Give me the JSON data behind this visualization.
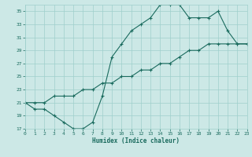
{
  "xlabel": "Humidex (Indice chaleur)",
  "ylabel": "",
  "bg_color": "#cce8e6",
  "grid_color": "#9fcfcc",
  "line_color": "#1a6b5e",
  "x_min": 0,
  "x_max": 23,
  "y_min": 17,
  "y_max": 36,
  "y_ticks": [
    17,
    19,
    21,
    23,
    25,
    27,
    29,
    31,
    33,
    35
  ],
  "x_ticks": [
    0,
    1,
    2,
    3,
    4,
    5,
    6,
    7,
    8,
    9,
    10,
    11,
    12,
    13,
    14,
    15,
    16,
    17,
    18,
    19,
    20,
    21,
    22,
    23
  ],
  "line1_x": [
    0,
    1,
    2,
    3,
    4,
    5,
    6,
    7,
    8,
    9,
    10,
    11,
    12,
    13,
    14,
    15,
    16,
    17,
    18,
    19,
    20,
    21,
    22,
    23
  ],
  "line1_y": [
    21,
    20,
    20,
    19,
    18,
    17,
    17,
    18,
    22,
    28,
    30,
    32,
    33,
    34,
    36,
    36,
    36,
    34,
    34,
    34,
    35,
    32,
    30,
    30
  ],
  "line2_x": [
    0,
    1,
    2,
    3,
    4,
    5,
    6,
    7,
    8,
    9,
    10,
    11,
    12,
    13,
    14,
    15,
    16,
    17,
    18,
    19,
    20,
    21,
    22,
    23
  ],
  "line2_y": [
    21,
    21,
    21,
    22,
    22,
    22,
    23,
    23,
    24,
    24,
    25,
    25,
    26,
    26,
    27,
    27,
    28,
    29,
    29,
    30,
    30,
    30,
    30,
    30
  ]
}
